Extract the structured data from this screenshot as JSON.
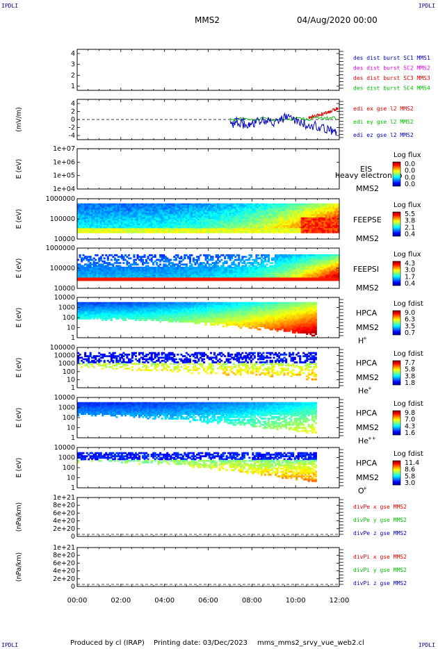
{
  "corners": {
    "tl": "IPDLI",
    "tr": "IPDLI",
    "bl": "IPDLI",
    "br": "IPDLI"
  },
  "header": {
    "spacecraft": "MMS2",
    "datetime": "04/Aug/2020 00:00"
  },
  "footer": {
    "produced": "Produced by cl (IRAP)",
    "printing": "Printing date: 03/Dec/2023",
    "file": "mms_mms2_srvy_vue_web2.cl"
  },
  "colors": {
    "blue": "#0000c0",
    "magenta": "#e000e0",
    "red": "#e00000",
    "green": "#00c000"
  },
  "chart_data": [
    {
      "type": "line",
      "xaxis": {
        "ticks": [
          "00:00",
          "02:00",
          "04:00",
          "06:00",
          "08:00",
          "10:00",
          "12:00"
        ],
        "range_hours": [
          0,
          12
        ]
      },
      "panels": [
        {
          "id": "dist",
          "type": "line",
          "ylabel": "",
          "yticks": [
            "1",
            "2",
            "3",
            "4"
          ],
          "ylim": [
            0.7,
            4.4
          ],
          "legend": [
            {
              "text": "des dist burst SC1 MMS1",
              "color": "#0000c0"
            },
            {
              "text": "des dist burst SC2 MMS2",
              "color": "#e000e0"
            },
            {
              "text": "des dist burst SC3 MMS3",
              "color": "#e00000"
            },
            {
              "text": "des dist burst SC4 MMS4",
              "color": "#00c000"
            }
          ]
        },
        {
          "id": "edi",
          "type": "line",
          "ylabel": "(mV/m)",
          "yticks": [
            "-4",
            "-2",
            "0",
            "2",
            "4"
          ],
          "ylim": [
            -5,
            5
          ],
          "zero_line": true,
          "legend": [
            {
              "text": "edi ex gse l2 MMS2",
              "color": "#e00000"
            },
            {
              "text": "edi ey gse l2 MMS2",
              "color": "#00c000"
            },
            {
              "text": "edi ez gse l2 MMS2",
              "color": "#0000c0"
            }
          ],
          "series": [
            {
              "name": "edi ex gse l2 MMS2",
              "x": [
                10.6,
                10.9,
                11.2,
                11.5,
                11.8,
                11.95
              ],
              "y": [
                0.5,
                1.0,
                1.6,
                2.2,
                3.0,
                3.8
              ]
            },
            {
              "name": "edi ey gse l2 MMS2",
              "x": [
                7.0,
                8.0,
                9.0,
                10.0,
                11.0,
                11.9
              ],
              "y": [
                0.1,
                0.0,
                0.2,
                0.1,
                0.3,
                0.4
              ]
            },
            {
              "name": "edi ez gse l2 MMS2",
              "x": [
                7.0,
                7.5,
                8.0,
                8.5,
                9.0,
                9.5,
                10.0,
                10.5,
                11.0,
                11.5,
                11.9
              ],
              "y": [
                -1.0,
                -1.5,
                -1.0,
                -0.5,
                -1.0,
                0.5,
                -0.5,
                -1.5,
                -2.0,
                -3.0,
                -4.0
              ]
            }
          ]
        },
        {
          "id": "eis",
          "type": "heatmap",
          "ylabel": "E (eV)",
          "yticks": [
            "1e+04",
            "1e+05",
            "1e+06",
            "1e+07"
          ],
          "instrument": [
            "EIS",
            "MMS2"
          ],
          "overlay": "heavy electron to",
          "cbar_title": "Log flux",
          "cbar_ticks": [
            "0.0",
            "0.0",
            "0.0",
            "0.0"
          ]
        },
        {
          "id": "feepse",
          "type": "heatmap",
          "ylabel": "E (eV)",
          "yticks": [
            "10000",
            "100000",
            "1000000"
          ],
          "instrument": [
            "FEEPSE",
            "MMS2"
          ],
          "cbar_title": "Log flux",
          "cbar_ticks": [
            "5.5",
            "3.8",
            "2.1",
            "0.4"
          ]
        },
        {
          "id": "feepsi",
          "type": "heatmap",
          "ylabel": "E (eV)",
          "yticks": [
            "10000",
            "100000",
            "1000000"
          ],
          "instrument": [
            "FEEPSI",
            "MMS2"
          ],
          "cbar_title": "Log flux",
          "cbar_ticks": [
            "4.3",
            "3.0",
            "1.7",
            "0.4"
          ]
        },
        {
          "id": "hpca_h",
          "type": "heatmap",
          "ylabel": "E (eV)",
          "yticks": [
            "1",
            "10",
            "100",
            "1000",
            "10000"
          ],
          "instrument": [
            "HPCA",
            "MMS2"
          ],
          "species": "H",
          "charge": "+",
          "cbar_title": "Log fdist",
          "cbar_ticks": [
            "9.0",
            "6.3",
            "3.5",
            "0.7"
          ]
        },
        {
          "id": "hpca_he",
          "type": "heatmap",
          "ylabel": "E (eV)",
          "yticks": [
            "1",
            "10",
            "100",
            "1000",
            "10000",
            "100000"
          ],
          "instrument": [
            "HPCA",
            "MMS2"
          ],
          "species": "He",
          "charge": "+",
          "cbar_title": "Log fdist",
          "cbar_ticks": [
            "7.7",
            "5.8",
            "3.8",
            "1.8"
          ]
        },
        {
          "id": "hpca_hepp",
          "type": "heatmap",
          "ylabel": "E (eV)",
          "yticks": [
            "1",
            "10",
            "100",
            "1000",
            "10000"
          ],
          "instrument": [
            "HPCA",
            "MMS2"
          ],
          "species": "He",
          "charge": "++",
          "cbar_title": "Log fdist",
          "cbar_ticks": [
            "9.8",
            "7.0",
            "4.3",
            "1.6"
          ]
        },
        {
          "id": "hpca_o",
          "type": "heatmap",
          "ylabel": "E (eV)",
          "yticks": [
            "1",
            "10",
            "100",
            "1000",
            "10000"
          ],
          "instrument": [
            "HPCA",
            "MMS2"
          ],
          "species": "O",
          "charge": "+",
          "cbar_title": "Log fdist",
          "cbar_ticks": [
            "11.4",
            "8.6",
            "5.8",
            "3.0"
          ]
        },
        {
          "id": "divpe",
          "type": "line",
          "ylabel": "(nPa/km)",
          "yticks": [
            "0",
            "2e+20",
            "4e+20",
            "6e+20",
            "8e+20",
            "1e+21"
          ],
          "zero_line": true,
          "legend": [
            {
              "text": "divPe x gse MMS2",
              "color": "#e00000"
            },
            {
              "text": "divPe y gse MMS2",
              "color": "#00c000"
            },
            {
              "text": "divPe z gse MMS2",
              "color": "#0000c0"
            }
          ]
        },
        {
          "id": "divpi",
          "type": "line",
          "ylabel": "(nPa/km)",
          "yticks": [
            "0",
            "2e+20",
            "4e+20",
            "6e+20",
            "8e+20",
            "1e+21"
          ],
          "zero_line": true,
          "legend": [
            {
              "text": "divPi x gse MMS2",
              "color": "#e00000"
            },
            {
              "text": "divPi y gse MMS2",
              "color": "#00c000"
            },
            {
              "text": "divPi z gse MMS2",
              "color": "#0000c0"
            }
          ]
        }
      ]
    }
  ]
}
